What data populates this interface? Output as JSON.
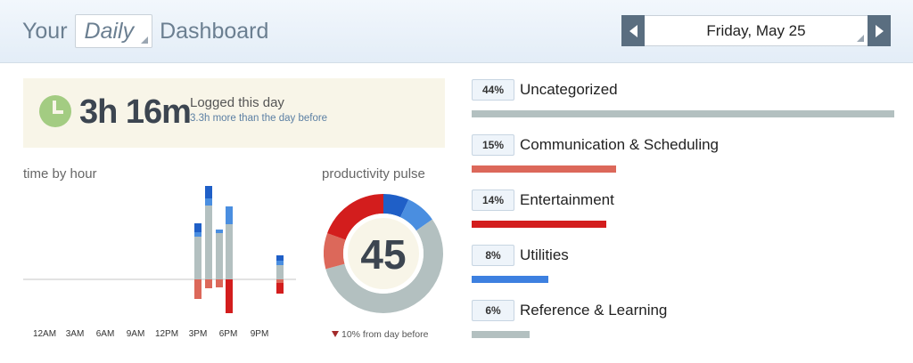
{
  "header": {
    "title_prefix": "Your",
    "period": "Daily",
    "title_suffix": "Dashboard",
    "date": "Friday, May 25"
  },
  "summary": {
    "logged_time": "3h 16m",
    "label": "Logged this day",
    "comparison": "3.3h more than the day before"
  },
  "time_by_hour": {
    "label": "time by hour",
    "tick_labels": [
      "12AM",
      "3AM",
      "6AM",
      "9AM",
      "12PM",
      "3PM",
      "6PM",
      "9PM"
    ]
  },
  "productivity_pulse": {
    "label": "productivity pulse",
    "score": "45",
    "change": "10% from day before"
  },
  "categories": [
    {
      "percent_label": "44%",
      "name": "Uncategorized",
      "value": 44,
      "color": "#b3c0c0"
    },
    {
      "percent_label": "15%",
      "name": "Communication & Scheduling",
      "value": 15,
      "color": "#dc685a"
    },
    {
      "percent_label": "14%",
      "name": "Entertainment",
      "value": 14,
      "color": "#d31d1d"
    },
    {
      "percent_label": "8%",
      "name": "Utilities",
      "value": 8,
      "color": "#3d80e0"
    },
    {
      "percent_label": "6%",
      "name": "Reference & Learning",
      "value": 6,
      "color": "#b3c0c0"
    }
  ],
  "colors": {
    "very_productive": "#1f5fc7",
    "productive": "#4a8ee0",
    "neutral": "#b3c0c0",
    "distracting": "#dc685a",
    "very_distracting": "#d31d1d",
    "clock": "#a3cc82"
  }
}
